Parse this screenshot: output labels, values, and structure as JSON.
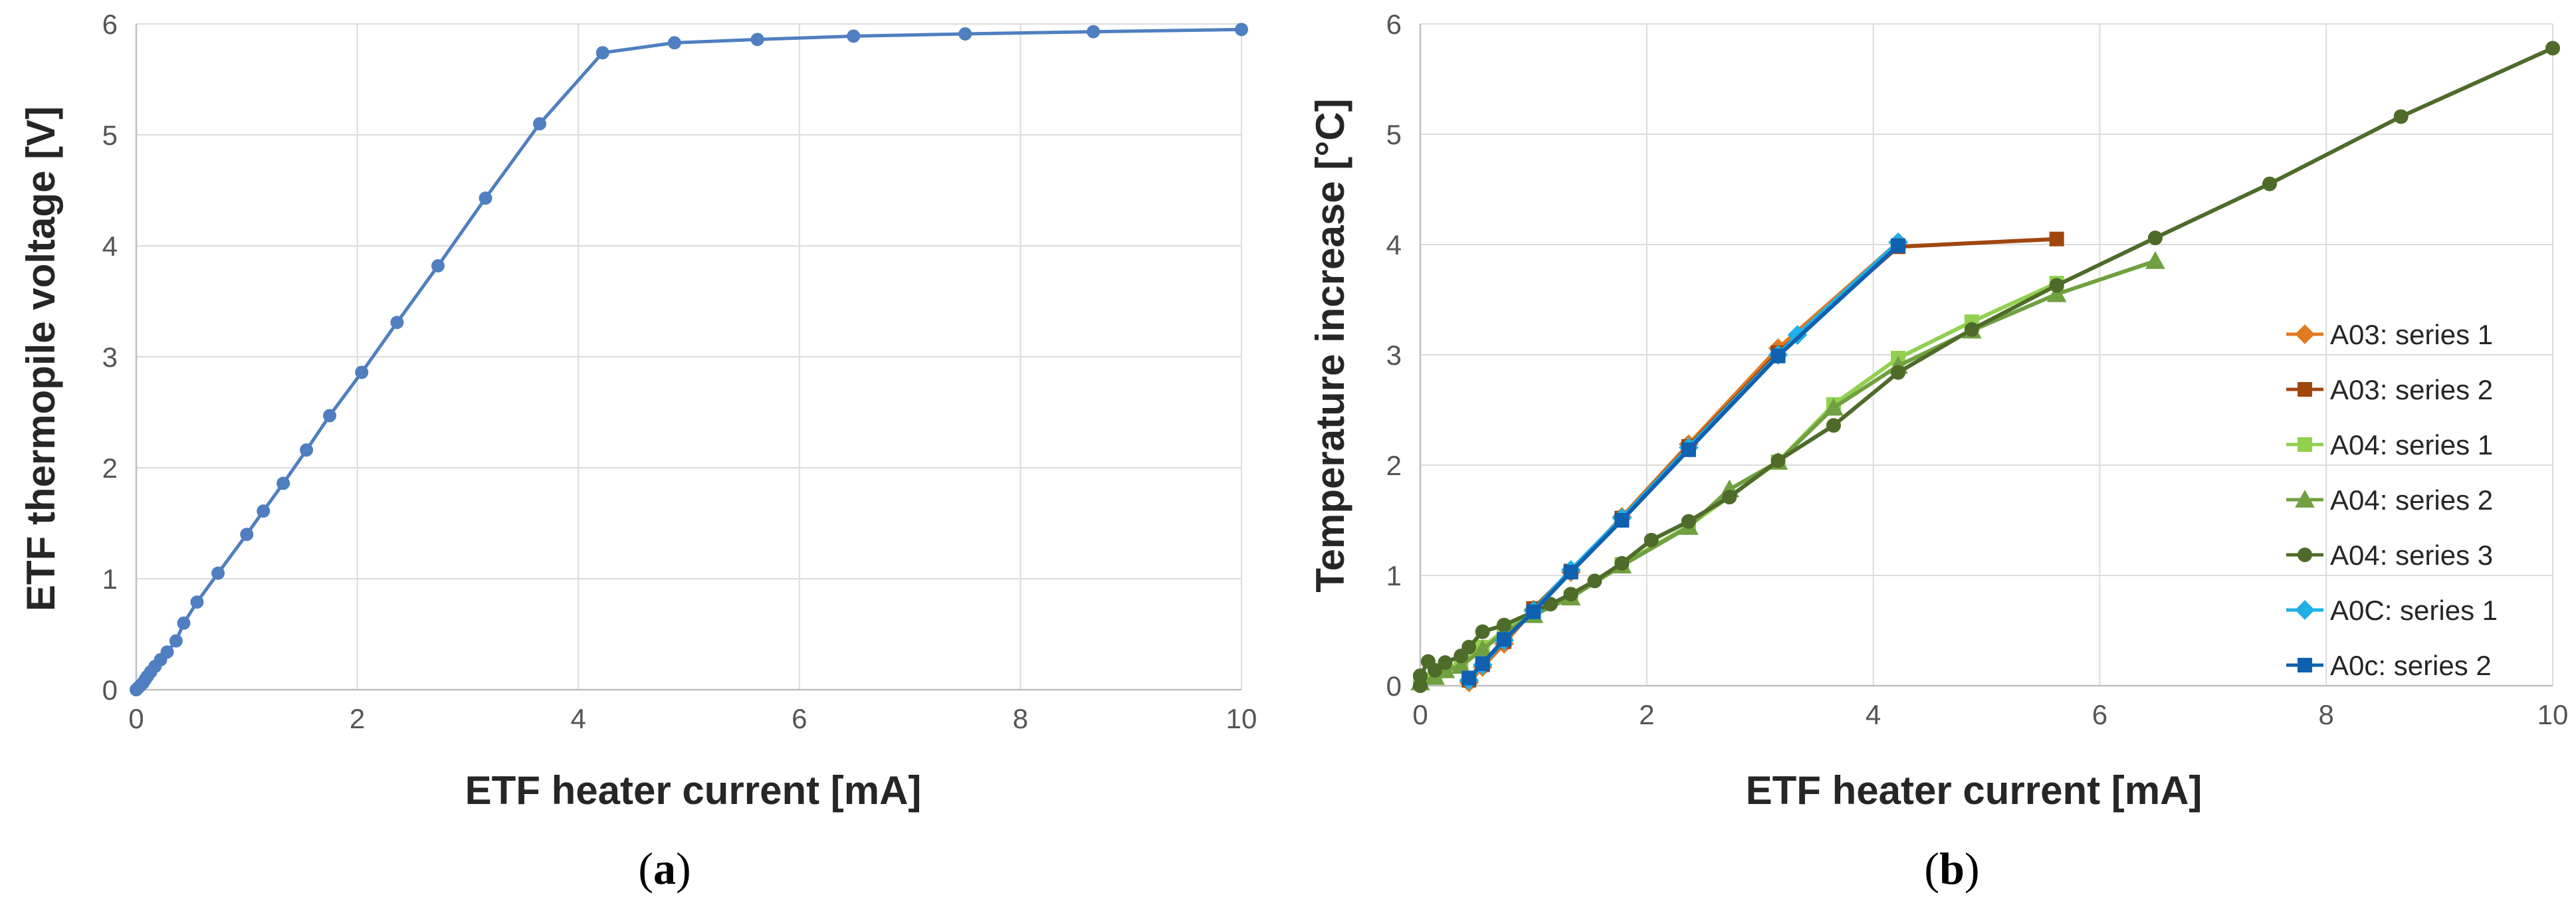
{
  "chart_data": [
    {
      "type": "line",
      "panel_label": "a",
      "xlabel": "ETF heater current [mA]",
      "ylabel": "ETF thermopile voltage [V]",
      "xlim": [
        0,
        10
      ],
      "ylim": [
        0,
        6
      ],
      "xticks": [
        0,
        2,
        4,
        6,
        8,
        10
      ],
      "yticks": [
        0,
        1,
        2,
        3,
        4,
        5,
        6
      ],
      "grid": true,
      "series": [
        {
          "color": "#4F7FC0",
          "marker": "circle",
          "points": [
            [
              0,
              0
            ],
            [
              0.02,
              0.02
            ],
            [
              0.04,
              0.04
            ],
            [
              0.06,
              0.06
            ],
            [
              0.08,
              0.09
            ],
            [
              0.1,
              0.12
            ],
            [
              0.13,
              0.16
            ],
            [
              0.17,
              0.21
            ],
            [
              0.22,
              0.27
            ],
            [
              0.28,
              0.34
            ],
            [
              0.36,
              0.44
            ],
            [
              0.43,
              0.6
            ],
            [
              0.55,
              0.79
            ],
            [
              0.74,
              1.05
            ],
            [
              1.0,
              1.4
            ],
            [
              1.15,
              1.61
            ],
            [
              1.33,
              1.86
            ],
            [
              1.54,
              2.16
            ],
            [
              1.75,
              2.47
            ],
            [
              2.04,
              2.86
            ],
            [
              2.36,
              3.31
            ],
            [
              2.73,
              3.82
            ],
            [
              3.16,
              4.43
            ],
            [
              3.65,
              5.1
            ],
            [
              4.22,
              5.74
            ],
            [
              4.87,
              5.83
            ],
            [
              5.62,
              5.86
            ],
            [
              6.49,
              5.89
            ],
            [
              7.5,
              5.91
            ],
            [
              8.66,
              5.93
            ],
            [
              10.0,
              5.95
            ]
          ]
        }
      ]
    },
    {
      "type": "line",
      "panel_label": "b",
      "xlabel": "ETF heater current [mA]",
      "ylabel": "Temperature increase [°C]",
      "xlim": [
        0,
        10
      ],
      "ylim": [
        0,
        6
      ],
      "xticks": [
        0,
        2,
        4,
        6,
        8,
        10
      ],
      "yticks": [
        0,
        1,
        2,
        3,
        4,
        5,
        6
      ],
      "grid": true,
      "legend": "right",
      "series": [
        {
          "name": "A03: series 1",
          "color": "#E07B22",
          "marker": "diamond",
          "points": [
            [
              0.43,
              0.03
            ],
            [
              0.55,
              0.17
            ],
            [
              0.74,
              0.38
            ],
            [
              1.0,
              0.69
            ],
            [
              1.33,
              1.03
            ],
            [
              1.78,
              1.53
            ],
            [
              2.37,
              2.19
            ],
            [
              3.16,
              3.06
            ],
            [
              4.22,
              4.02
            ]
          ]
        },
        {
          "name": "A03: series 2",
          "color": "#A0470F",
          "marker": "square",
          "points": [
            [
              0.43,
              0.05
            ],
            [
              0.55,
              0.19
            ],
            [
              0.74,
              0.4
            ],
            [
              1.0,
              0.7
            ],
            [
              1.33,
              1.04
            ],
            [
              1.78,
              1.52
            ],
            [
              2.37,
              2.17
            ],
            [
              3.16,
              3.02
            ],
            [
              4.22,
              3.98
            ],
            [
              5.62,
              4.05
            ]
          ]
        },
        {
          "name": "A04: series 1",
          "color": "#92D050",
          "marker": "square",
          "points": [
            [
              0,
              0.05
            ],
            [
              0.13,
              0.1
            ],
            [
              0.22,
              0.16
            ],
            [
              0.36,
              0.2
            ],
            [
              0.55,
              0.35
            ],
            [
              0.74,
              0.5
            ],
            [
              1.0,
              0.65
            ],
            [
              1.33,
              0.8
            ],
            [
              1.78,
              1.1
            ],
            [
              2.37,
              1.45
            ],
            [
              3.16,
              2.03
            ],
            [
              3.65,
              2.55
            ],
            [
              4.22,
              2.97
            ],
            [
              4.87,
              3.3
            ],
            [
              5.62,
              3.65
            ]
          ]
        },
        {
          "name": "A04: series 2",
          "color": "#70A040",
          "marker": "triangle",
          "points": [
            [
              0,
              0.03
            ],
            [
              0.13,
              0.08
            ],
            [
              0.22,
              0.14
            ],
            [
              0.36,
              0.18
            ],
            [
              0.55,
              0.33
            ],
            [
              0.74,
              0.48
            ],
            [
              1.0,
              0.64
            ],
            [
              1.33,
              0.8
            ],
            [
              1.78,
              1.09
            ],
            [
              2.37,
              1.44
            ],
            [
              2.73,
              1.78
            ],
            [
              3.16,
              2.03
            ],
            [
              3.65,
              2.52
            ],
            [
              4.22,
              2.9
            ],
            [
              4.87,
              3.22
            ],
            [
              5.62,
              3.55
            ],
            [
              6.49,
              3.85
            ]
          ]
        },
        {
          "name": "A04: series 3",
          "color": "#4E6B2A",
          "marker": "circle",
          "points": [
            [
              0,
              0.0
            ],
            [
              0,
              0.09
            ],
            [
              0.07,
              0.22
            ],
            [
              0.13,
              0.14
            ],
            [
              0.22,
              0.21
            ],
            [
              0.36,
              0.27
            ],
            [
              0.43,
              0.35
            ],
            [
              0.55,
              0.49
            ],
            [
              0.74,
              0.55
            ],
            [
              1.0,
              0.67
            ],
            [
              1.15,
              0.74
            ],
            [
              1.33,
              0.83
            ],
            [
              1.54,
              0.95
            ],
            [
              1.78,
              1.11
            ],
            [
              2.04,
              1.32
            ],
            [
              2.37,
              1.49
            ],
            [
              2.73,
              1.71
            ],
            [
              3.16,
              2.04
            ],
            [
              3.65,
              2.36
            ],
            [
              4.22,
              2.84
            ],
            [
              4.87,
              3.23
            ],
            [
              5.62,
              3.63
            ],
            [
              6.49,
              4.06
            ],
            [
              7.5,
              4.55
            ],
            [
              8.66,
              5.16
            ],
            [
              10.0,
              5.78
            ]
          ]
        },
        {
          "name": "A0C: series 1",
          "color": "#1FB0E6",
          "marker": "diamond",
          "points": [
            [
              0.43,
              0.05
            ],
            [
              0.55,
              0.19
            ],
            [
              0.74,
              0.41
            ],
            [
              1.0,
              0.68
            ],
            [
              1.33,
              1.05
            ],
            [
              1.78,
              1.52
            ],
            [
              2.37,
              2.16
            ],
            [
              3.16,
              3.0
            ],
            [
              3.33,
              3.18
            ],
            [
              4.22,
              4.02
            ]
          ]
        },
        {
          "name": "A0c: series 2",
          "color": "#1060B0",
          "marker": "square",
          "points": [
            [
              0.43,
              0.07
            ],
            [
              0.55,
              0.2
            ],
            [
              0.74,
              0.42
            ],
            [
              1.0,
              0.67
            ],
            [
              1.33,
              1.03
            ],
            [
              1.78,
              1.5
            ],
            [
              2.37,
              2.14
            ],
            [
              3.16,
              2.99
            ],
            [
              4.22,
              3.99
            ]
          ]
        }
      ]
    }
  ]
}
